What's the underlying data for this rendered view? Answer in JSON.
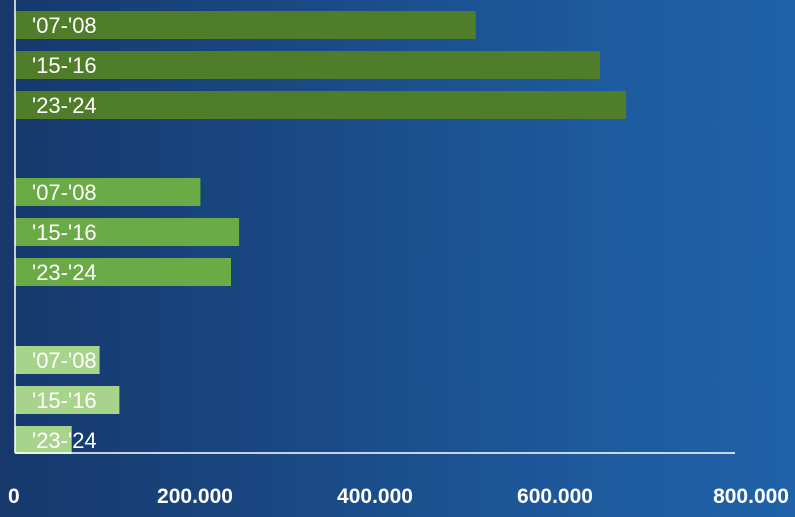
{
  "chart_data": {
    "type": "bar",
    "orientation": "horizontal",
    "title": "",
    "xlabel": "",
    "ylabel": "",
    "xlim": [
      0,
      800000
    ],
    "x_ticks": [
      "0",
      "200.000",
      "400.000",
      "600.000",
      "800.000"
    ],
    "x_tick_values": [
      0,
      200000,
      400000,
      600000,
      800000
    ],
    "grid": false,
    "legend": "none",
    "groups": [
      {
        "color": "#4f7d2a",
        "bars": [
          {
            "label": "'07-'08",
            "value": 512000
          },
          {
            "label": "'15-'16",
            "value": 650000
          },
          {
            "label": "'23-'24",
            "value": 679000
          }
        ]
      },
      {
        "color": "#6aab45",
        "bars": [
          {
            "label": "'07-'08",
            "value": 206000
          },
          {
            "label": "'15-'16",
            "value": 249000
          },
          {
            "label": "'23-'24",
            "value": 240000
          }
        ]
      },
      {
        "color": "#a8d38a",
        "bars": [
          {
            "label": "'07-'08",
            "value": 94000
          },
          {
            "label": "'15-'16",
            "value": 116000
          },
          {
            "label": "'23-'24",
            "value": 63000
          }
        ]
      }
    ]
  }
}
